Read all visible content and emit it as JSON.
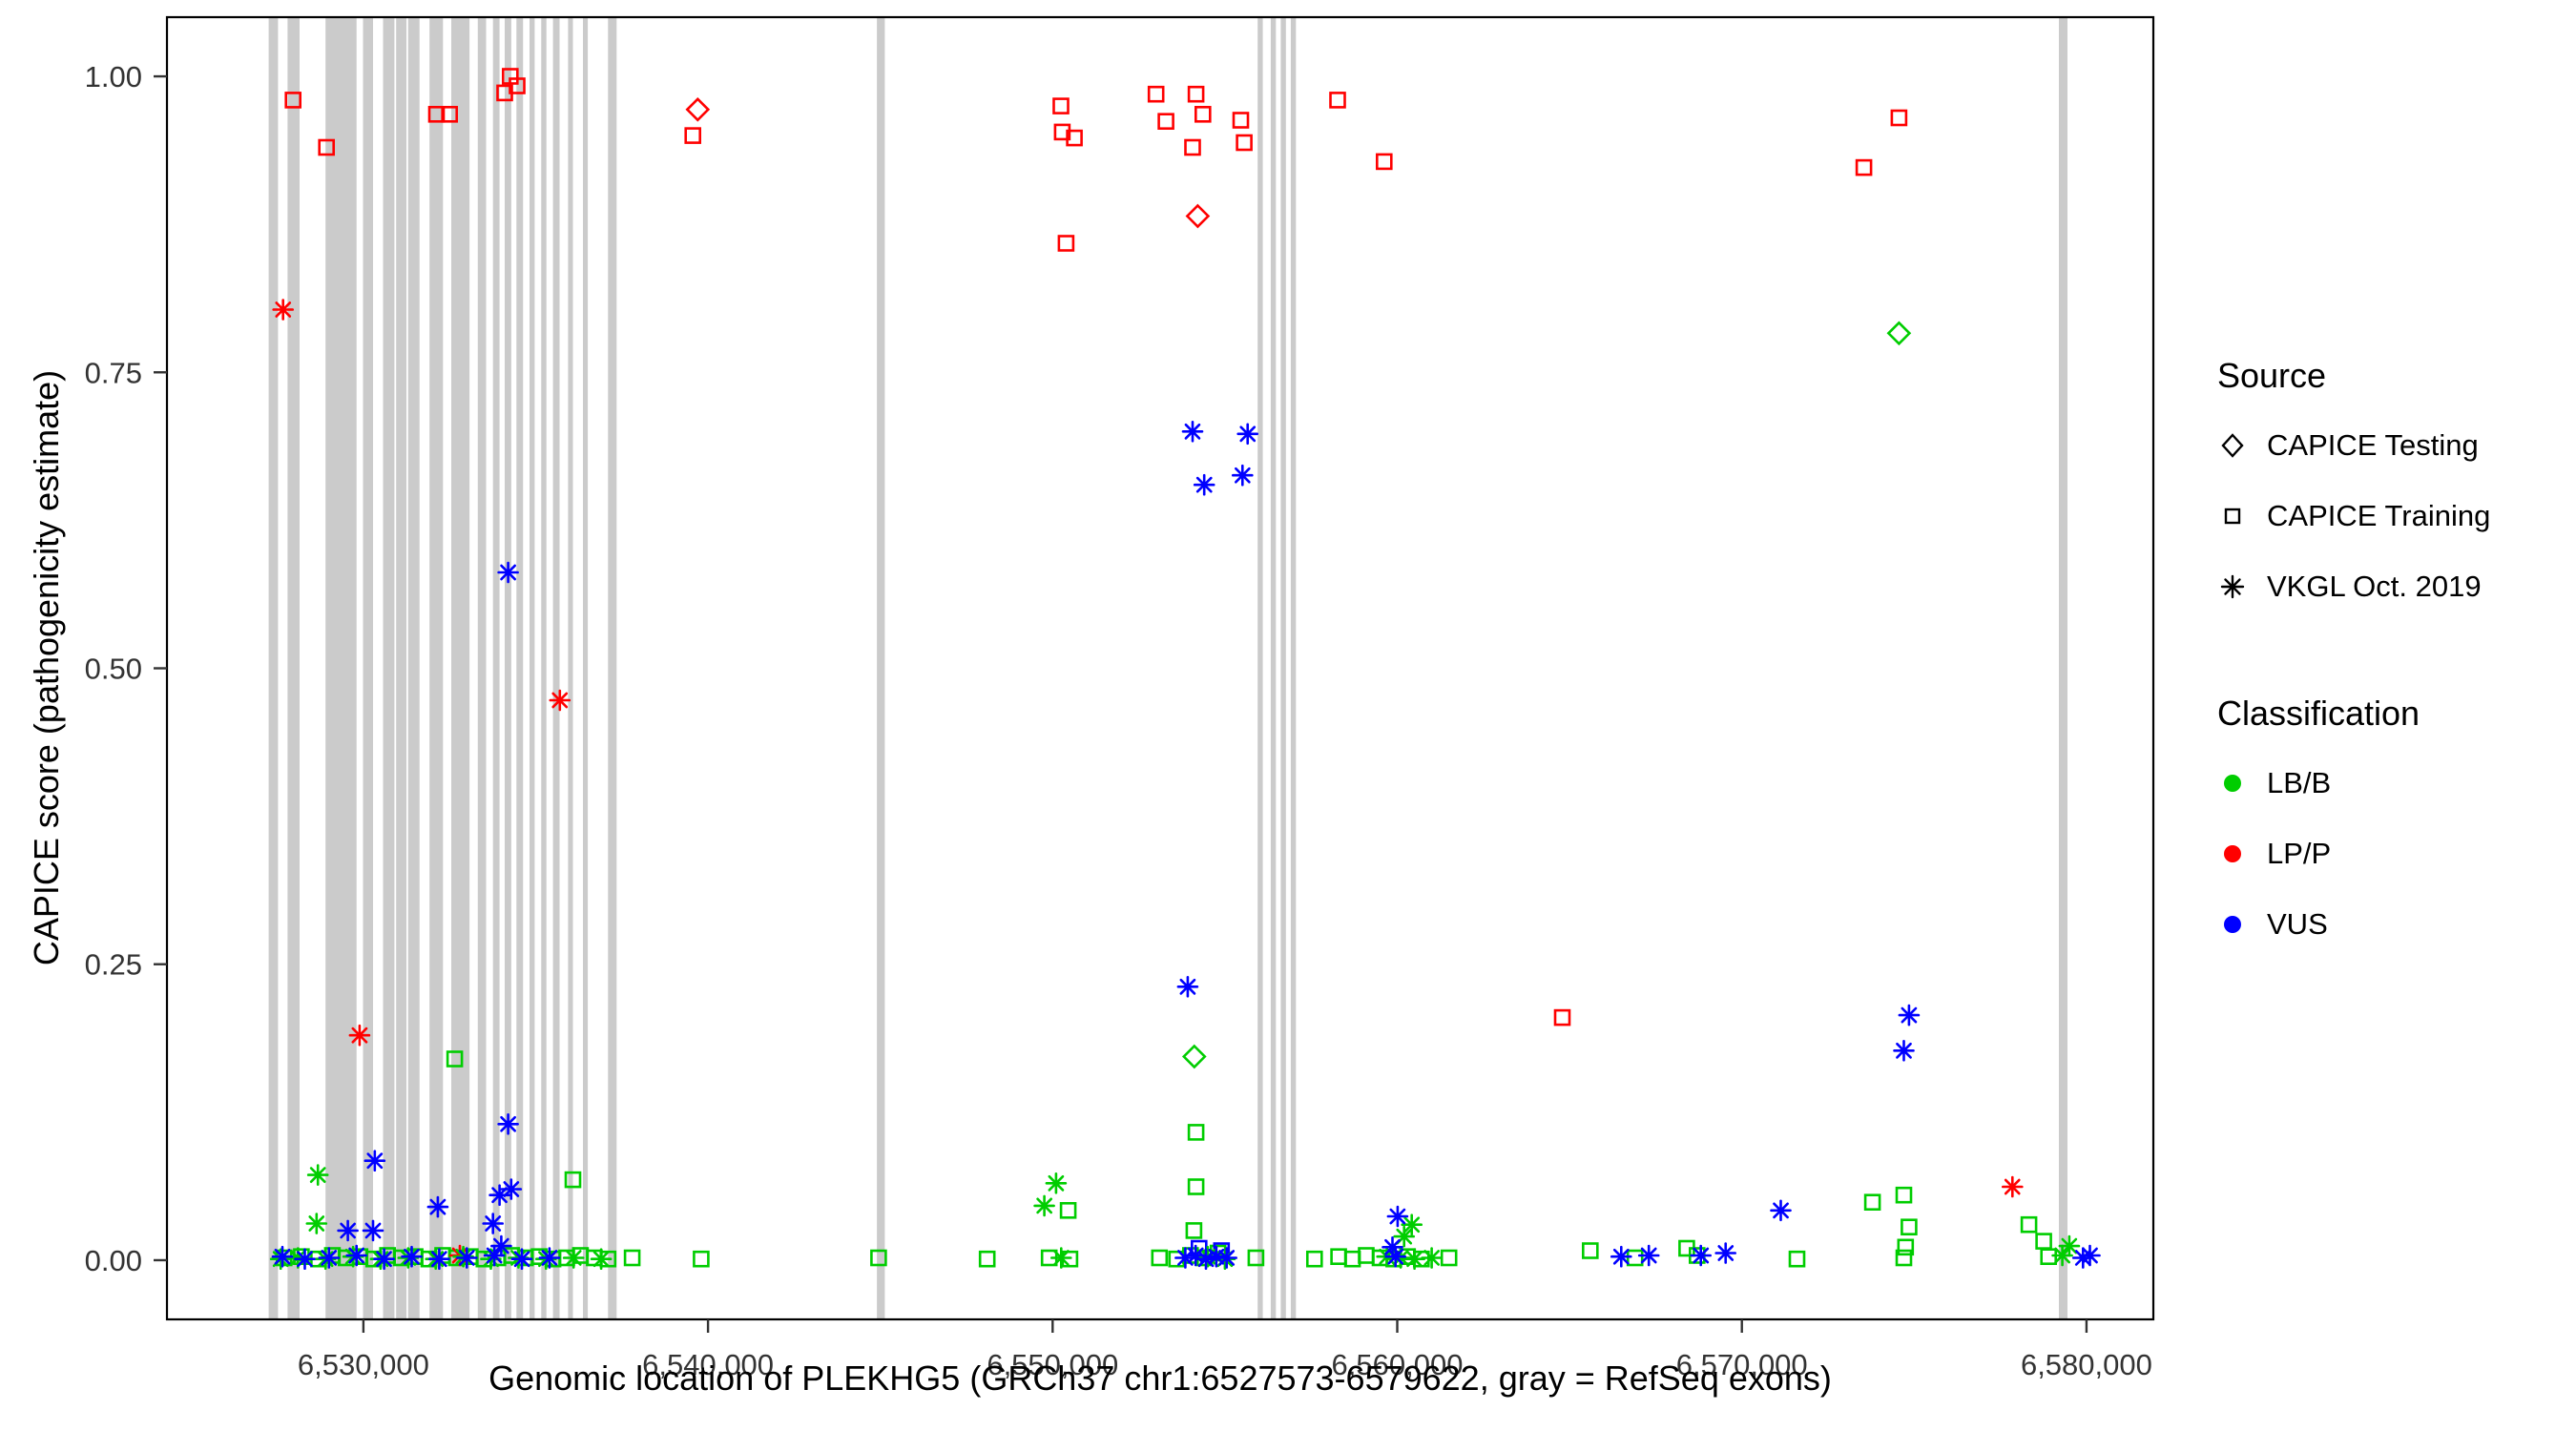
{
  "legend": {
    "source": {
      "title": "Source",
      "items": [
        {
          "label": "CAPICE Testing",
          "symbol": "diamond"
        },
        {
          "label": "CAPICE Training",
          "symbol": "square"
        },
        {
          "label": "VKGL Oct. 2019",
          "symbol": "asterisk"
        }
      ]
    },
    "classification": {
      "title": "Classification",
      "items": [
        {
          "label": "LB/B",
          "color": "#00CD00"
        },
        {
          "label": "LP/P",
          "color": "#FF0000"
        },
        {
          "label": "VUS",
          "color": "#0000FF"
        }
      ]
    }
  },
  "chart_data": {
    "type": "scatter",
    "title": "",
    "xlabel": "Genomic location of PLEKHG5 (GRCh37 chr1:6527573-6579622, gray = RefSeq exons)",
    "ylabel": "CAPICE score (pathogenicity estimate)",
    "xlim": [
      6524300,
      6581940
    ],
    "ylim": [
      -0.05,
      1.05
    ],
    "grid": false,
    "legend_position": "right",
    "exon_color": "#CBCBCB",
    "x_ticks": [
      {
        "value": 6530000,
        "label": "6,530,000"
      },
      {
        "value": 6540000,
        "label": "6,540,000"
      },
      {
        "value": 6550000,
        "label": "6,550,000"
      },
      {
        "value": 6560000,
        "label": "6,560,000"
      },
      {
        "value": 6570000,
        "label": "6,570,000"
      },
      {
        "value": 6580000,
        "label": "6,580,000"
      }
    ],
    "y_ticks": [
      {
        "value": 0.0,
        "label": "0.00"
      },
      {
        "value": 0.25,
        "label": "0.25"
      },
      {
        "value": 0.5,
        "label": "0.50"
      },
      {
        "value": 0.75,
        "label": "0.75"
      },
      {
        "value": 1.0,
        "label": "1.00"
      }
    ],
    "exons": [
      [
        6527250,
        6527520
      ],
      [
        6527800,
        6528150
      ],
      [
        6528900,
        6529800
      ],
      [
        6529990,
        6530280
      ],
      [
        6530570,
        6530900
      ],
      [
        6530950,
        6531250
      ],
      [
        6531300,
        6531630
      ],
      [
        6531920,
        6532310
      ],
      [
        6532550,
        6533080
      ],
      [
        6533320,
        6533560
      ],
      [
        6533760,
        6533950
      ],
      [
        6534100,
        6534290
      ],
      [
        6534440,
        6534630
      ],
      [
        6534820,
        6534970
      ],
      [
        6535160,
        6535310
      ],
      [
        6535500,
        6535690
      ],
      [
        6535940,
        6536080
      ],
      [
        6536370,
        6536510
      ],
      [
        6537100,
        6537350
      ],
      [
        6544900,
        6545130
      ],
      [
        6555950,
        6556100
      ],
      [
        6556330,
        6556480
      ],
      [
        6556620,
        6556770
      ],
      [
        6556910,
        6557060
      ],
      [
        6579200,
        6579450
      ]
    ],
    "series": [
      {
        "name": "CAPICE Testing / LP/P",
        "source": "CAPICE Testing",
        "classification": "LP/P",
        "symbol": "diamond",
        "color": "#FF0000",
        "points": [
          [
            6539700,
            0.972
          ],
          [
            6554210,
            0.882
          ]
        ]
      },
      {
        "name": "CAPICE Testing / LB/B",
        "source": "CAPICE Testing",
        "classification": "LB/B",
        "symbol": "diamond",
        "color": "#00CD00",
        "points": [
          [
            6554110,
            0.172
          ],
          [
            6574560,
            0.783
          ]
        ]
      },
      {
        "name": "CAPICE Training / LP/P",
        "source": "CAPICE Training",
        "classification": "LP/P",
        "symbol": "square",
        "color": "#FF0000",
        "points": [
          [
            6527960,
            0.98
          ],
          [
            6528930,
            0.94
          ],
          [
            6532120,
            0.968
          ],
          [
            6532500,
            0.968
          ],
          [
            6534100,
            0.986
          ],
          [
            6534260,
            1.0
          ],
          [
            6534460,
            0.992
          ],
          [
            6539560,
            0.95
          ],
          [
            6550240,
            0.975
          ],
          [
            6550280,
            0.953
          ],
          [
            6550630,
            0.948
          ],
          [
            6550390,
            0.859
          ],
          [
            6553000,
            0.985
          ],
          [
            6553290,
            0.962
          ],
          [
            6554160,
            0.985
          ],
          [
            6554360,
            0.968
          ],
          [
            6554060,
            0.94
          ],
          [
            6555460,
            0.963
          ],
          [
            6555560,
            0.944
          ],
          [
            6558270,
            0.98
          ],
          [
            6559620,
            0.928
          ],
          [
            6564790,
            0.205
          ],
          [
            6573540,
            0.923
          ],
          [
            6574560,
            0.965
          ]
        ]
      },
      {
        "name": "CAPICE Training / LB/B",
        "source": "CAPICE Training",
        "classification": "LB/B",
        "symbol": "square",
        "color": "#00CD00",
        "points": [
          [
            6532650,
            0.17
          ],
          [
            6536080,
            0.068
          ],
          [
            6554160,
            0.108
          ],
          [
            6554160,
            0.062
          ],
          [
            6554100,
            0.025
          ],
          [
            6550450,
            0.042
          ],
          [
            6573790,
            0.049
          ],
          [
            6574700,
            0.055
          ],
          [
            6574850,
            0.028
          ],
          [
            6574750,
            0.011
          ],
          [
            6578330,
            0.03
          ],
          [
            6578760,
            0.016
          ],
          [
            6527700,
            0.002
          ],
          [
            6528200,
            0.003
          ],
          [
            6528700,
            0.001
          ],
          [
            6529100,
            0.004
          ],
          [
            6529500,
            0.002
          ],
          [
            6529900,
            0.003
          ],
          [
            6530300,
            0.001
          ],
          [
            6530700,
            0.004
          ],
          [
            6531100,
            0.002
          ],
          [
            6531500,
            0.003
          ],
          [
            6531900,
            0.001
          ],
          [
            6532300,
            0.004
          ],
          [
            6532700,
            0.002
          ],
          [
            6533100,
            0.003
          ],
          [
            6533500,
            0.001
          ],
          [
            6533900,
            0.002
          ],
          [
            6534300,
            0.004
          ],
          [
            6534700,
            0.002
          ],
          [
            6535100,
            0.003
          ],
          [
            6535500,
            0.001
          ],
          [
            6535900,
            0.002
          ],
          [
            6536300,
            0.004
          ],
          [
            6536700,
            0.002
          ],
          [
            6537100,
            0.001
          ],
          [
            6537800,
            0.002
          ],
          [
            6539800,
            0.001
          ],
          [
            6544950,
            0.002
          ],
          [
            6548100,
            0.001
          ],
          [
            6549900,
            0.002
          ],
          [
            6550500,
            0.001
          ],
          [
            6553100,
            0.002
          ],
          [
            6553600,
            0.001
          ],
          [
            6554000,
            0.004
          ],
          [
            6554400,
            0.002
          ],
          [
            6554800,
            0.006
          ],
          [
            6555900,
            0.002
          ],
          [
            6557600,
            0.001
          ],
          [
            6558300,
            0.003
          ],
          [
            6558700,
            0.001
          ],
          [
            6559100,
            0.004
          ],
          [
            6559500,
            0.002
          ],
          [
            6559900,
            0.001
          ],
          [
            6560300,
            0.003
          ],
          [
            6560700,
            0.001
          ],
          [
            6561500,
            0.002
          ],
          [
            6565600,
            0.008
          ],
          [
            6566900,
            0.002
          ],
          [
            6568400,
            0.01
          ],
          [
            6568700,
            0.004
          ],
          [
            6571600,
            0.001
          ],
          [
            6574700,
            0.002
          ],
          [
            6578900,
            0.003
          ]
        ]
      },
      {
        "name": "CAPICE Training / VUS",
        "source": "CAPICE Training",
        "classification": "VUS",
        "symbol": "square",
        "color": "#0000FF",
        "points": [
          [
            6554250,
            0.01
          ],
          [
            6554900,
            0.008
          ]
        ]
      },
      {
        "name": "VKGL Oct. 2019 / LP/P",
        "source": "VKGL Oct. 2019",
        "classification": "LP/P",
        "symbol": "asterisk",
        "color": "#FF0000",
        "points": [
          [
            6527670,
            0.803
          ],
          [
            6529890,
            0.19
          ],
          [
            6535700,
            0.473
          ],
          [
            6532800,
            0.004
          ],
          [
            6577850,
            0.062
          ]
        ]
      },
      {
        "name": "VKGL Oct. 2019 / LB/B",
        "source": "VKGL Oct. 2019",
        "classification": "LB/B",
        "symbol": "asterisk",
        "color": "#00CD00",
        "points": [
          [
            6528680,
            0.072
          ],
          [
            6528640,
            0.031
          ],
          [
            6550100,
            0.065
          ],
          [
            6549760,
            0.046
          ],
          [
            6560200,
            0.02
          ],
          [
            6560420,
            0.03
          ],
          [
            6527600,
            0.001
          ],
          [
            6528100,
            0.002
          ],
          [
            6528900,
            0.001
          ],
          [
            6529700,
            0.003
          ],
          [
            6530500,
            0.001
          ],
          [
            6531300,
            0.002
          ],
          [
            6532100,
            0.001
          ],
          [
            6532900,
            0.003
          ],
          [
            6533700,
            0.001
          ],
          [
            6534500,
            0.002
          ],
          [
            6535300,
            0.001
          ],
          [
            6536100,
            0.002
          ],
          [
            6536900,
            0.001
          ],
          [
            6550250,
            0.002
          ],
          [
            6554500,
            0.003
          ],
          [
            6555000,
            0.001
          ],
          [
            6559700,
            0.003
          ],
          [
            6560100,
            0.002
          ],
          [
            6560500,
            0.001
          ],
          [
            6561000,
            0.002
          ],
          [
            6579300,
            0.004
          ],
          [
            6579500,
            0.012
          ]
        ]
      },
      {
        "name": "VKGL Oct. 2019 / VUS",
        "source": "VKGL Oct. 2019",
        "classification": "VUS",
        "symbol": "asterisk",
        "color": "#0000FF",
        "points": [
          [
            6534200,
            0.581
          ],
          [
            6554060,
            0.7
          ],
          [
            6555660,
            0.698
          ],
          [
            6554400,
            0.655
          ],
          [
            6555510,
            0.663
          ],
          [
            6553920,
            0.231
          ],
          [
            6530330,
            0.084
          ],
          [
            6532160,
            0.045
          ],
          [
            6534200,
            0.115
          ],
          [
            6533950,
            0.055
          ],
          [
            6534290,
            0.06
          ],
          [
            6529550,
            0.025
          ],
          [
            6530280,
            0.025
          ],
          [
            6533760,
            0.031
          ],
          [
            6534000,
            0.012
          ],
          [
            6560010,
            0.037
          ],
          [
            6559860,
            0.011
          ],
          [
            6566500,
            0.003
          ],
          [
            6567300,
            0.004
          ],
          [
            6568810,
            0.004
          ],
          [
            6569530,
            0.006
          ],
          [
            6571130,
            0.042
          ],
          [
            6574850,
            0.207
          ],
          [
            6574700,
            0.177
          ],
          [
            6527650,
            0.003
          ],
          [
            6528300,
            0.001
          ],
          [
            6529000,
            0.002
          ],
          [
            6529800,
            0.004
          ],
          [
            6530600,
            0.001
          ],
          [
            6531400,
            0.003
          ],
          [
            6532200,
            0.001
          ],
          [
            6533000,
            0.002
          ],
          [
            6533800,
            0.004
          ],
          [
            6534600,
            0.001
          ],
          [
            6535400,
            0.002
          ],
          [
            6553850,
            0.002
          ],
          [
            6554150,
            0.004
          ],
          [
            6554450,
            0.001
          ],
          [
            6554750,
            0.003
          ],
          [
            6555050,
            0.002
          ],
          [
            6559950,
            0.003
          ],
          [
            6579900,
            0.002
          ],
          [
            6580100,
            0.004
          ]
        ]
      }
    ]
  }
}
